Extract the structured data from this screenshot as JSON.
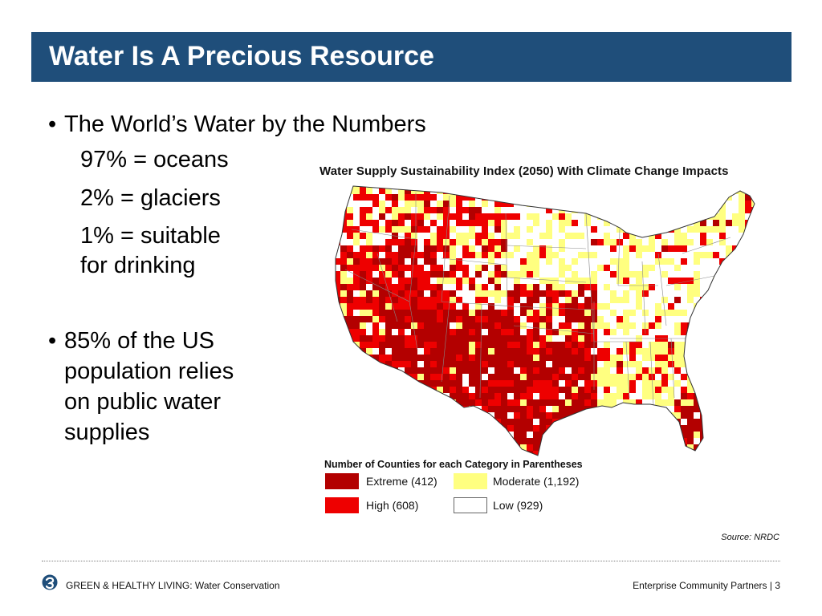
{
  "slide": {
    "title": "Water Is A Precious Resource",
    "bullets": [
      {
        "bullet": "•",
        "text": "The World’s Water by the Numbers",
        "sub": [
          "97% = oceans",
          "2% = glaciers",
          "1% = suitable",
          "for drinking"
        ]
      },
      {
        "bullet": "•",
        "lines": [
          "85% of the US",
          "population relies",
          "on public water",
          "supplies"
        ]
      }
    ]
  },
  "map": {
    "title": "Water Supply Sustainability Index (2050) With Climate Change Impacts",
    "legend_heading": "Number of Counties for each Category in Parentheses",
    "legend": [
      {
        "label": "Extreme (412)",
        "color": "#b30000"
      },
      {
        "label": "High (608)",
        "color": "#ee0000"
      },
      {
        "label": "Moderate (1,192)",
        "color": "#ffff80"
      },
      {
        "label": "Low (929)",
        "color": "#ffffff"
      }
    ],
    "source": "Source: NRDC"
  },
  "footer": {
    "left": "GREEN & HEALTHY LIVING: Water Conservation",
    "right": "Enterprise Community Partners | 3"
  },
  "colors": {
    "title_bar": "#1f4e7a",
    "extreme": "#b30000",
    "high": "#ee0000",
    "moderate": "#ffff80",
    "low": "#ffffff"
  }
}
